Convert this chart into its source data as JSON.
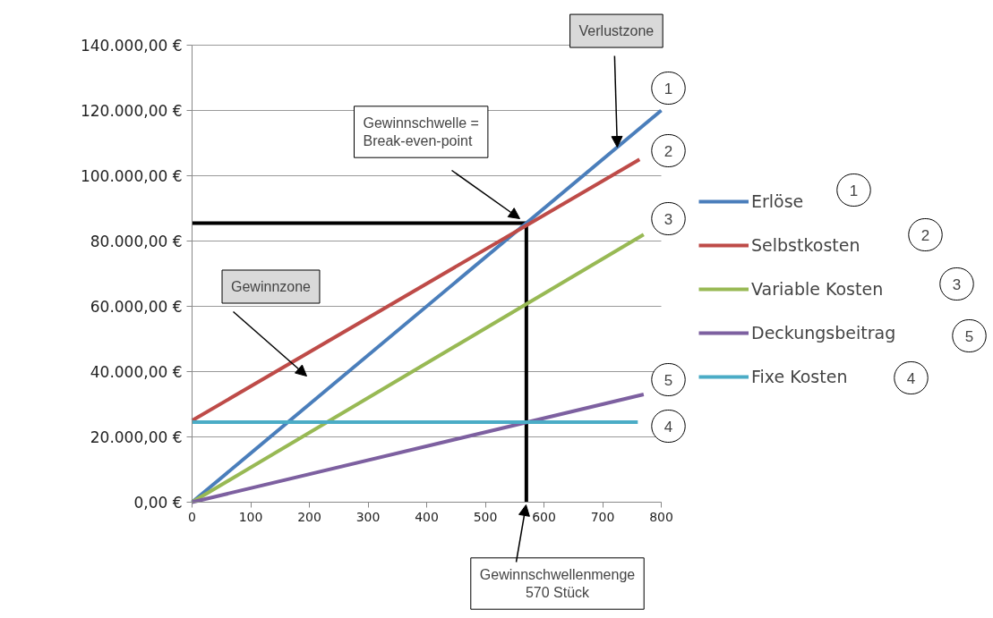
{
  "chart_data": {
    "type": "line",
    "xlim": [
      0,
      800
    ],
    "xticks": [
      0,
      100,
      200,
      300,
      400,
      500,
      600,
      700,
      800
    ],
    "ylim": [
      0,
      140000
    ],
    "yticks": [
      {
        "value": 0,
        "label": "0,00 €"
      },
      {
        "value": 20000,
        "label": "20.000,00 €"
      },
      {
        "value": 40000,
        "label": "40.000,00 €"
      },
      {
        "value": 60000,
        "label": "60.000,00 €"
      },
      {
        "value": 80000,
        "label": "80.000,00 €"
      },
      {
        "value": 100000,
        "label": "100.000,00 €"
      },
      {
        "value": 120000,
        "label": "120.000,00 €"
      },
      {
        "value": 140000,
        "label": "140.000,00 €"
      }
    ],
    "grid": "y",
    "legend": "right",
    "marker": "none",
    "line_style": "solid",
    "series": [
      {
        "name": "Erlöse",
        "color": "#4a7ebb",
        "x": [
          0,
          800
        ],
        "values": [
          0,
          120000
        ]
      },
      {
        "name": "Selbstkosten",
        "color": "#be4b48",
        "x": [
          0,
          763
        ],
        "values": [
          25000,
          105000
        ]
      },
      {
        "name": "Variable Kosten",
        "color": "#98b954",
        "x": [
          0,
          770
        ],
        "values": [
          0,
          82000
        ]
      },
      {
        "name": "Deckungsbeitrag",
        "color": "#7d60a0",
        "x": [
          0,
          770
        ],
        "values": [
          0,
          33000
        ]
      },
      {
        "name": "Fixe Kosten",
        "color": "#4bacc6",
        "x": [
          0,
          760
        ],
        "values": [
          24500,
          24500
        ]
      }
    ],
    "ref_lines": [
      {
        "axis": "x",
        "value": 570,
        "color": "#000000"
      },
      {
        "axis": "y",
        "value": 85500,
        "color": "#000000"
      }
    ],
    "annotations": [
      {
        "text": "Verlustzone",
        "x": 725,
        "y": 108750
      },
      "Gewinnschwelle =\nBreak-even-point",
      "Gewinnzone",
      "Gewinnschwellenmenge\n570 Stück",
      "1",
      "2",
      "3",
      "5",
      "4"
    ]
  }
}
